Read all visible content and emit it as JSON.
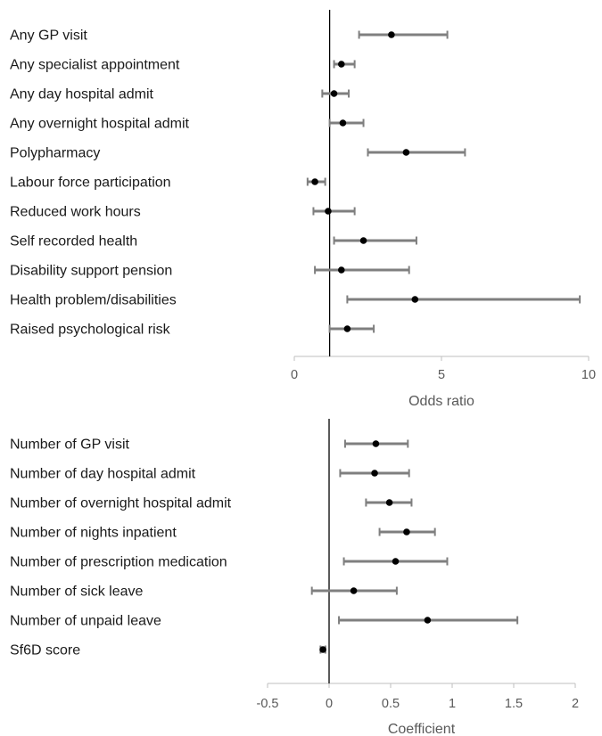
{
  "chart_data": [
    {
      "type": "forest",
      "xlabel": "Odds ratio",
      "xlim": [
        0,
        10
      ],
      "xticks": [
        0,
        5,
        10
      ],
      "reference_line": 1.2,
      "categories": [
        "Any GP visit",
        "Any specialist appointment",
        "Any day hospital admit",
        "Any overnight hospital admit",
        "Polypharmacy",
        "Labour force participation",
        "Reduced work hours",
        "Self recorded health",
        "Disability support pension",
        "Health problem/disabilities",
        "Raised psychological risk"
      ],
      "estimates": [
        3.3,
        1.6,
        1.35,
        1.65,
        3.8,
        0.7,
        1.15,
        2.35,
        1.6,
        4.1,
        1.8
      ],
      "lower": [
        2.2,
        1.35,
        0.95,
        1.2,
        2.5,
        0.45,
        0.65,
        1.35,
        0.7,
        1.8,
        1.2
      ],
      "upper": [
        5.2,
        2.05,
        1.85,
        2.35,
        5.8,
        1.05,
        2.05,
        4.15,
        3.9,
        9.7,
        2.7
      ],
      "grid": false
    },
    {
      "type": "forest",
      "xlabel": "Coefficient",
      "xlim": [
        -0.5,
        2
      ],
      "xticks": [
        -0.5,
        0,
        0.5,
        1,
        1.5,
        2
      ],
      "reference_line": 0,
      "categories": [
        "Number of GP visit",
        "Number of day hospital admit",
        "Number of overnight hospital admit",
        "Number of nights inpatient",
        "Number of prescription medication",
        "Number of sick leave",
        "Number of unpaid leave",
        "Sf6D score"
      ],
      "estimates": [
        0.38,
        0.37,
        0.49,
        0.63,
        0.54,
        0.2,
        0.8,
        -0.05
      ],
      "lower": [
        0.13,
        0.09,
        0.3,
        0.41,
        0.12,
        -0.14,
        0.08,
        -0.07
      ],
      "upper": [
        0.64,
        0.65,
        0.67,
        0.86,
        0.96,
        0.55,
        1.53,
        -0.03
      ],
      "grid": false
    }
  ],
  "colors": {
    "error_bar": "#7f7f7f",
    "point": "#000000",
    "axis": "#bfbfbf",
    "reference_line": "#000000"
  }
}
